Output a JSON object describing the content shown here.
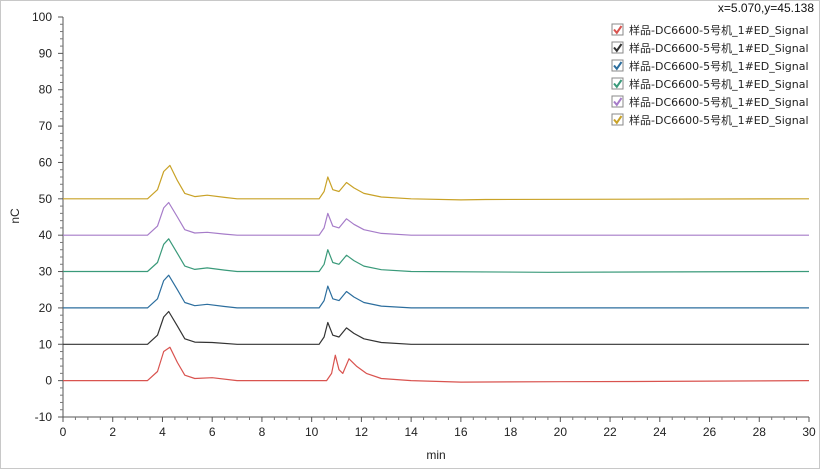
{
  "cursor_readout": "x=5.070,y=45.138",
  "chart_data": {
    "type": "line",
    "xlabel": "min",
    "ylabel": "nC",
    "xlim": [
      0,
      30
    ],
    "ylim": [
      -10,
      100
    ],
    "xticks": [
      0,
      2,
      4,
      6,
      8,
      10,
      12,
      14,
      16,
      18,
      20,
      22,
      24,
      26,
      28,
      30
    ],
    "yticks": [
      -10,
      0,
      10,
      20,
      30,
      40,
      50,
      60,
      70,
      80,
      90,
      100
    ],
    "grid": false,
    "legend_position": "top-right",
    "series": [
      {
        "name": "样品-DC6600-5号机_1#ED_Signal",
        "color": "#d9534f",
        "baseline": 0,
        "points": [
          [
            0,
            0
          ],
          [
            3.4,
            0
          ],
          [
            3.8,
            2.5
          ],
          [
            4.05,
            8
          ],
          [
            4.3,
            9.2
          ],
          [
            4.6,
            5
          ],
          [
            4.9,
            1.5
          ],
          [
            5.3,
            0.6
          ],
          [
            6,
            0.8
          ],
          [
            7,
            0
          ],
          [
            10.6,
            0
          ],
          [
            10.8,
            2
          ],
          [
            10.95,
            7
          ],
          [
            11.1,
            3
          ],
          [
            11.25,
            2
          ],
          [
            11.5,
            6
          ],
          [
            11.8,
            4
          ],
          [
            12.2,
            2
          ],
          [
            12.8,
            0.6
          ],
          [
            14,
            0
          ],
          [
            16,
            -0.4
          ],
          [
            20,
            -0.3
          ],
          [
            24,
            -0.2
          ],
          [
            30,
            0
          ]
        ]
      },
      {
        "name": "样品-DC6600-5号机_1#ED_Signal",
        "color": "#333333",
        "baseline": 10,
        "points": [
          [
            0,
            10
          ],
          [
            3.4,
            10
          ],
          [
            3.8,
            12.5
          ],
          [
            4.05,
            17.5
          ],
          [
            4.25,
            19
          ],
          [
            4.6,
            15
          ],
          [
            4.9,
            11.5
          ],
          [
            5.3,
            10.6
          ],
          [
            6,
            10.5
          ],
          [
            7,
            10
          ],
          [
            10.3,
            10
          ],
          [
            10.5,
            12
          ],
          [
            10.65,
            16
          ],
          [
            10.85,
            12.5
          ],
          [
            11.1,
            12
          ],
          [
            11.4,
            14.5
          ],
          [
            11.7,
            13
          ],
          [
            12.1,
            11.5
          ],
          [
            12.8,
            10.5
          ],
          [
            14,
            10
          ],
          [
            30,
            10
          ]
        ]
      },
      {
        "name": "样品-DC6600-5号机_1#ED_Signal",
        "color": "#2c6e9e",
        "baseline": 20,
        "points": [
          [
            0,
            20
          ],
          [
            3.4,
            20
          ],
          [
            3.8,
            22.5
          ],
          [
            4.05,
            27.5
          ],
          [
            4.25,
            29
          ],
          [
            4.6,
            25
          ],
          [
            4.9,
            21.5
          ],
          [
            5.3,
            20.6
          ],
          [
            5.8,
            21
          ],
          [
            6.5,
            20.4
          ],
          [
            7,
            20
          ],
          [
            10.3,
            20
          ],
          [
            10.5,
            22
          ],
          [
            10.65,
            26
          ],
          [
            10.85,
            22.5
          ],
          [
            11.1,
            22
          ],
          [
            11.4,
            24.5
          ],
          [
            11.7,
            23
          ],
          [
            12.1,
            21.5
          ],
          [
            12.8,
            20.5
          ],
          [
            14,
            20
          ],
          [
            30,
            20
          ]
        ]
      },
      {
        "name": "样品-DC6600-5号机_1#ED_Signal",
        "color": "#3a9a7a",
        "baseline": 30,
        "points": [
          [
            0,
            30
          ],
          [
            3.4,
            30
          ],
          [
            3.8,
            32.5
          ],
          [
            4.05,
            37.5
          ],
          [
            4.25,
            39
          ],
          [
            4.6,
            35
          ],
          [
            4.9,
            31.5
          ],
          [
            5.3,
            30.6
          ],
          [
            5.8,
            31
          ],
          [
            6.5,
            30.4
          ],
          [
            7,
            30
          ],
          [
            10.3,
            30
          ],
          [
            10.5,
            32
          ],
          [
            10.65,
            36
          ],
          [
            10.85,
            32.5
          ],
          [
            11.1,
            32
          ],
          [
            11.4,
            34.5
          ],
          [
            11.7,
            33
          ],
          [
            12.1,
            31.5
          ],
          [
            12.8,
            30.5
          ],
          [
            14,
            30
          ],
          [
            19.5,
            29.8
          ],
          [
            30,
            30
          ]
        ]
      },
      {
        "name": "样品-DC6600-5号机_1#ED_Signal",
        "color": "#a67cc9",
        "baseline": 40,
        "points": [
          [
            0,
            40
          ],
          [
            3.4,
            40
          ],
          [
            3.8,
            42.5
          ],
          [
            4.05,
            47.5
          ],
          [
            4.25,
            49
          ],
          [
            4.6,
            45
          ],
          [
            4.9,
            41.5
          ],
          [
            5.3,
            40.6
          ],
          [
            5.8,
            40.8
          ],
          [
            6.5,
            40.3
          ],
          [
            7,
            40
          ],
          [
            10.3,
            40
          ],
          [
            10.5,
            42
          ],
          [
            10.65,
            46
          ],
          [
            10.85,
            42.5
          ],
          [
            11.1,
            42
          ],
          [
            11.4,
            44.5
          ],
          [
            11.7,
            43
          ],
          [
            12.1,
            41.5
          ],
          [
            12.8,
            40.5
          ],
          [
            14,
            40
          ],
          [
            30,
            40
          ]
        ]
      },
      {
        "name": "样品-DC6600-5号机_1#ED_Signal",
        "color": "#c9a227",
        "baseline": 50,
        "points": [
          [
            0,
            50
          ],
          [
            3.4,
            50
          ],
          [
            3.8,
            52.5
          ],
          [
            4.05,
            57.5
          ],
          [
            4.3,
            59.2
          ],
          [
            4.6,
            55
          ],
          [
            4.9,
            51.5
          ],
          [
            5.3,
            50.6
          ],
          [
            5.8,
            51
          ],
          [
            6.5,
            50.4
          ],
          [
            7,
            50
          ],
          [
            10.3,
            50
          ],
          [
            10.5,
            52
          ],
          [
            10.65,
            56
          ],
          [
            10.85,
            52.5
          ],
          [
            11.1,
            52
          ],
          [
            11.4,
            54.5
          ],
          [
            11.7,
            53
          ],
          [
            12.1,
            51.5
          ],
          [
            12.8,
            50.5
          ],
          [
            14,
            50
          ],
          [
            16,
            49.7
          ],
          [
            17,
            49.8
          ],
          [
            30,
            50
          ]
        ]
      }
    ]
  }
}
